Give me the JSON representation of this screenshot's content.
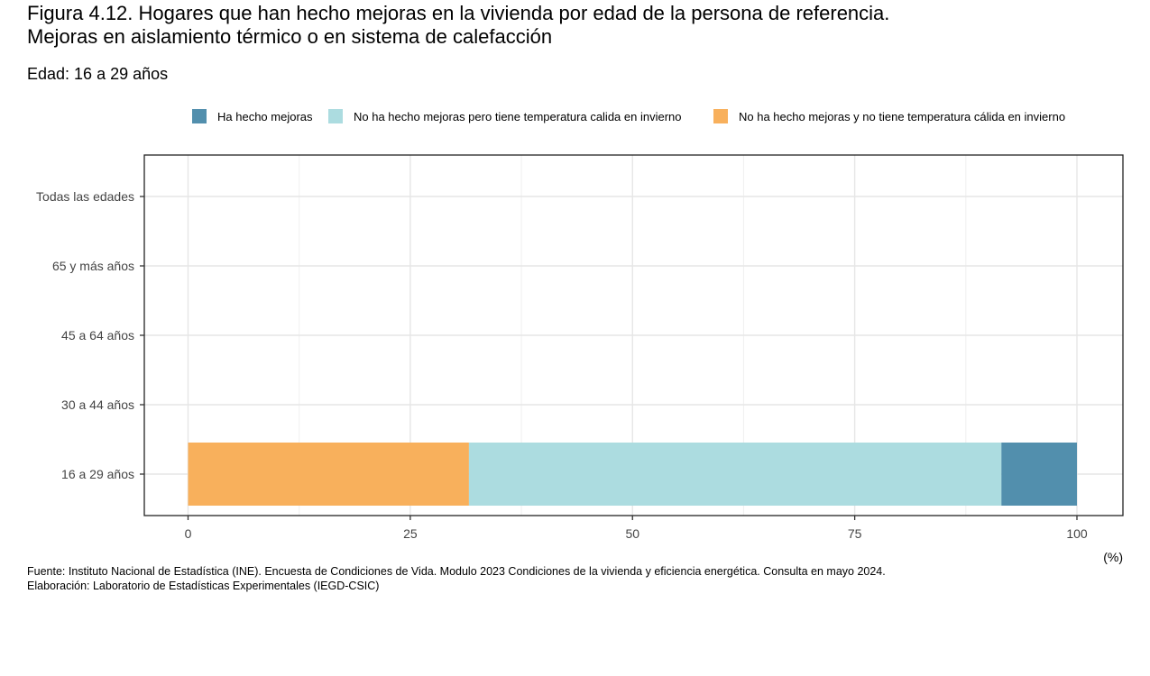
{
  "header": {
    "title_line1": "Figura 4.12. Hogares que han hecho mejoras en la vivienda por edad de la persona de referencia.",
    "title_line2": "Mejoras en aislamiento térmico o en sistema de calefacción",
    "subtitle": "Edad: 16 a 29 años"
  },
  "footer": {
    "source": "Fuente: Instituto Nacional de Estadística (INE). Encuesta de Condiciones de Vida. Modulo 2023 Condiciones de la vivienda y eficiencia energética. Consulta en mayo 2024.",
    "credit": "Elaboración: Laboratorio de Estadísticas Experimentales (IEGD-CSIC)"
  },
  "chart_data": {
    "type": "bar",
    "orientation": "horizontal",
    "stacked": true,
    "categories": [
      "Todas las edades",
      "65 y más años",
      "45 a 64 años",
      "30 a 44 años",
      "16 a 29 años"
    ],
    "series": [
      {
        "name": "No ha hecho mejoras y no tiene temperatura cálida en invierno",
        "color": "#F8B05C",
        "values": [
          null,
          null,
          null,
          null,
          31.6
        ]
      },
      {
        "name": "No ha hecho mejoras pero tiene temperatura calida en invierno",
        "color": "#ACDCE0",
        "values": [
          null,
          null,
          null,
          null,
          59.9
        ]
      },
      {
        "name": "Ha hecho mejoras",
        "color": "#528FAD",
        "values": [
          null,
          null,
          null,
          null,
          8.5
        ]
      }
    ],
    "legend": {
      "position": "top",
      "order": [
        "Ha hecho mejoras",
        "No ha hecho mejoras pero tiene temperatura calida en invierno",
        "No ha hecho mejoras y no tiene temperatura cálida en invierno"
      ]
    },
    "x_ticks": [
      0,
      25,
      50,
      75,
      100
    ],
    "xlim": [
      0,
      100
    ],
    "x_unit_label": "(%)",
    "grid": true
  }
}
